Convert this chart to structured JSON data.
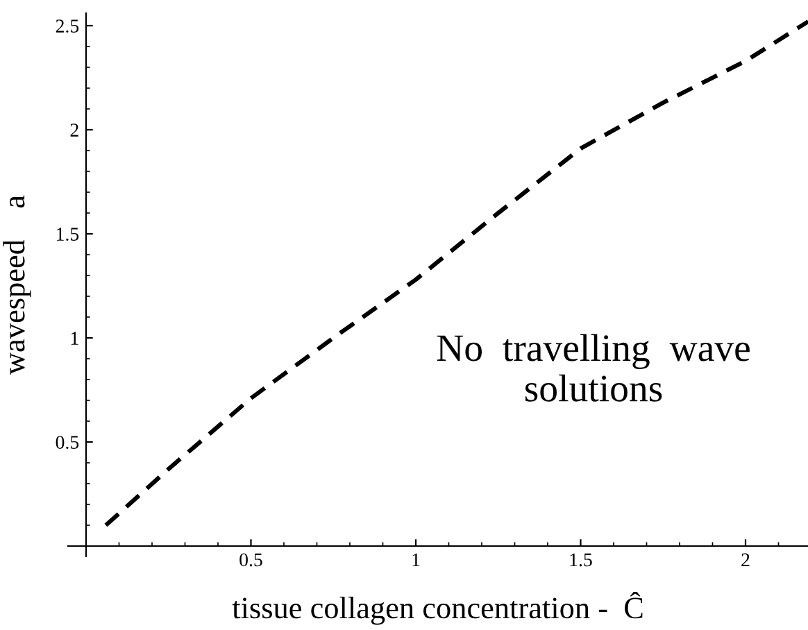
{
  "chart_data": {
    "type": "line",
    "xlabel": "tissue collagen concentration -  Ĉ",
    "ylabel": "wavespeed    a",
    "x": [
      0.06,
      0.25,
      0.5,
      0.75,
      1.0,
      1.25,
      1.5,
      1.75,
      2.0,
      2.19
    ],
    "series": [
      {
        "color": "#000000",
        "values": [
          0.1,
          0.37,
          0.71,
          1.0,
          1.28,
          1.6,
          1.91,
          2.13,
          2.33,
          2.52
        ]
      }
    ],
    "line_style": "dashed",
    "marker": "none",
    "grid": false,
    "legend": false,
    "xlim": [
      -0.055,
      2.19
    ],
    "ylim": [
      -0.05,
      2.56
    ],
    "xticks": [
      0.5,
      1,
      1.5,
      2
    ],
    "yticks": [
      0.5,
      1,
      1.5,
      2,
      2.5
    ],
    "annotations": [
      "No  travelling  wave\nsolutions"
    ]
  }
}
